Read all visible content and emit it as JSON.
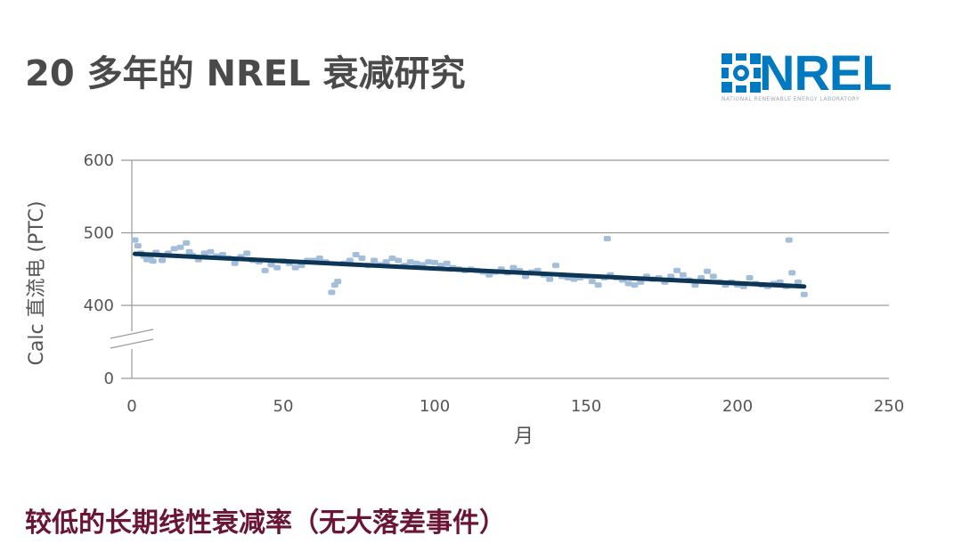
{
  "header": {
    "title": "20 多年的 NREL 衰减研究",
    "logo_text": "NREL",
    "logo_subtext": "NATIONAL RENEWABLE ENERGY LABORATORY"
  },
  "footer": {
    "subtitle": "较低的长期线性衰减率（无大落差事件）"
  },
  "colors": {
    "points": "#a3bedb",
    "trend": "#0d3656",
    "grid": "#9a9a9a",
    "title": "#4a4a4a",
    "subtitle": "#6b1535",
    "logo": "#0079c1"
  },
  "chart_data": {
    "type": "scatter",
    "xlabel": "月",
    "ylabel": "Calc 直流电 (PTC)",
    "xlim": [
      0,
      250
    ],
    "ylim": [
      0,
      600
    ],
    "axis_break": [
      0,
      400
    ],
    "x_ticks": [
      0,
      50,
      100,
      150,
      200,
      250
    ],
    "y_ticks": [
      0,
      400,
      500,
      600
    ],
    "grid": "horizontal",
    "series": [
      {
        "x": [
          1,
          2,
          3,
          4,
          5,
          6,
          7,
          8,
          10,
          12,
          14,
          16,
          18,
          19,
          20,
          22,
          24,
          26,
          28,
          30,
          32,
          34,
          36,
          38,
          40,
          42,
          44,
          46,
          48,
          50,
          52,
          54,
          56,
          58,
          60,
          62,
          64,
          66,
          67,
          68,
          70,
          72,
          74,
          76,
          78,
          80,
          82,
          84,
          86,
          88,
          90,
          92,
          94,
          96,
          98,
          100,
          102,
          104,
          106,
          108,
          110,
          112,
          114,
          116,
          118,
          120,
          122,
          124,
          126,
          128,
          130,
          132,
          134,
          136,
          138,
          140,
          142,
          144,
          146,
          148,
          150,
          152,
          154,
          156,
          157,
          158,
          160,
          162,
          164,
          166,
          168,
          170,
          172,
          174,
          176,
          178,
          180,
          182,
          184,
          186,
          188,
          190,
          192,
          194,
          196,
          198,
          200,
          202,
          204,
          206,
          208,
          210,
          212,
          214,
          216,
          217,
          218,
          220,
          222
        ],
        "y": [
          490,
          482,
          472,
          468,
          463,
          465,
          461,
          473,
          462,
          472,
          478,
          480,
          486,
          474,
          469,
          463,
          472,
          474,
          468,
          470,
          465,
          458,
          467,
          472,
          462,
          460,
          448,
          456,
          452,
          461,
          458,
          452,
          455,
          462,
          462,
          465,
          460,
          418,
          428,
          433,
          458,
          462,
          470,
          465,
          455,
          462,
          456,
          460,
          465,
          462,
          455,
          460,
          458,
          456,
          460,
          459,
          455,
          458,
          452,
          450,
          448,
          450,
          448,
          446,
          442,
          446,
          450,
          445,
          452,
          448,
          440,
          446,
          448,
          442,
          436,
          455,
          440,
          438,
          436,
          438,
          440,
          433,
          428,
          438,
          492,
          442,
          438,
          435,
          430,
          428,
          432,
          440,
          436,
          438,
          432,
          440,
          448,
          442,
          435,
          428,
          438,
          447,
          440,
          432,
          428,
          432,
          428,
          426,
          438,
          430,
          428,
          426,
          430,
          432,
          426,
          490,
          445,
          432,
          415
        ]
      },
      {
        "name": "trend",
        "x": [
          1,
          222
        ],
        "y": [
          471,
          426
        ]
      }
    ]
  }
}
